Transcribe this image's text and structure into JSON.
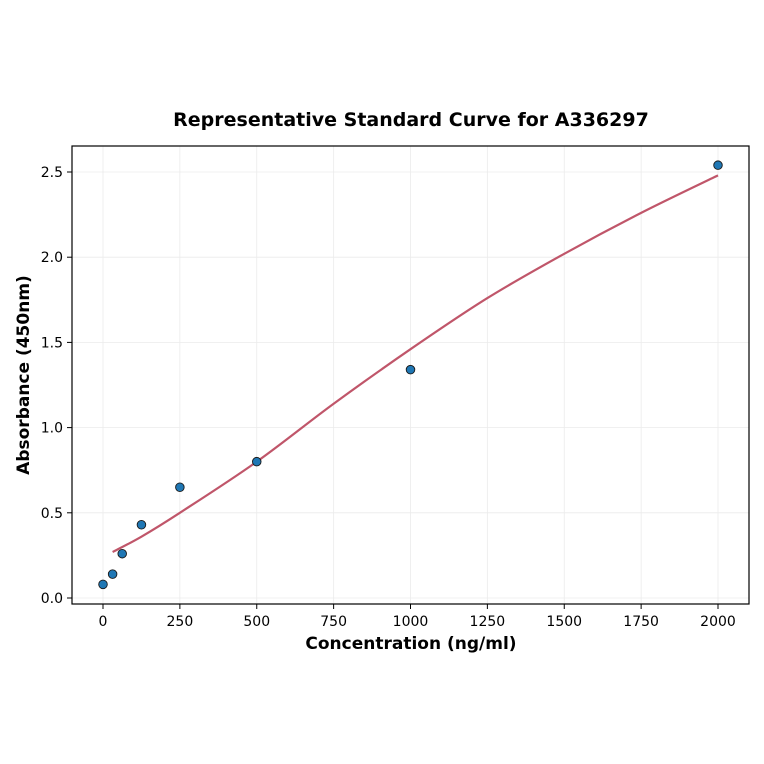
{
  "chart_data": {
    "type": "scatter",
    "title": "Representative Standard Curve for A336297",
    "xlabel": "Concentration (ng/ml)",
    "ylabel": "Absorbance (450nm)",
    "xlim": [
      -100,
      2100
    ],
    "ylim": [
      -0.04,
      2.65
    ],
    "xticks": [
      0,
      250,
      500,
      750,
      1000,
      1250,
      1500,
      1750,
      2000
    ],
    "yticks": [
      "0.0",
      "0.5",
      "1.0",
      "1.5",
      "2.0",
      "2.5"
    ],
    "grid": true,
    "points": {
      "x": [
        0,
        31.25,
        62.5,
        125,
        250,
        500,
        1000,
        2000
      ],
      "y": [
        0.08,
        0.14,
        0.26,
        0.43,
        0.65,
        0.8,
        1.34,
        2.54
      ],
      "color": "#1f77b4"
    },
    "fit_curve": {
      "x": [
        31.25,
        125,
        250,
        500,
        750,
        1000,
        1250,
        1500,
        1750,
        2000
      ],
      "y": [
        0.27,
        0.36,
        0.5,
        0.8,
        1.14,
        1.46,
        1.76,
        2.02,
        2.26,
        2.48
      ],
      "color": "#c0566a"
    }
  }
}
